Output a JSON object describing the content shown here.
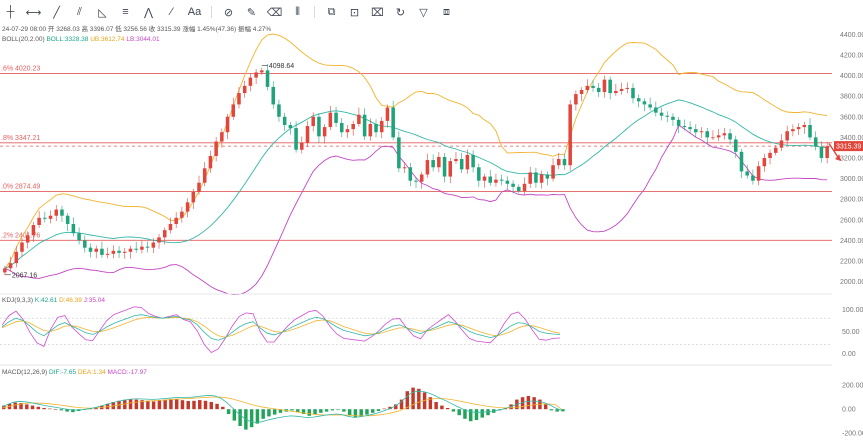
{
  "toolbar": {
    "tools": [
      {
        "name": "crosshair-icon",
        "glyph": "┼"
      },
      {
        "name": "horizontal-ray-icon",
        "glyph": "⟷"
      },
      {
        "name": "trend-line-icon",
        "glyph": "╱"
      },
      {
        "name": "parallel-channel-icon",
        "glyph": "⫽"
      },
      {
        "name": "triangle-icon",
        "glyph": "◺"
      },
      {
        "name": "fib-lines-icon",
        "glyph": "≡"
      },
      {
        "name": "pattern-icon",
        "glyph": "⋀"
      },
      {
        "name": "brush-icon",
        "glyph": "⁄"
      },
      {
        "name": "text-icon",
        "glyph": "Aa"
      },
      {
        "name": "magnet-icon",
        "glyph": "⊘"
      },
      {
        "name": "pencil-icon",
        "glyph": "✎"
      },
      {
        "name": "eraser-icon",
        "glyph": "⌫"
      },
      {
        "name": "candle-icon",
        "glyph": "⫴"
      },
      {
        "name": "copy-icon",
        "glyph": "⧉"
      },
      {
        "name": "lock-icon",
        "glyph": "⊡"
      },
      {
        "name": "trash-icon",
        "glyph": "⌧"
      },
      {
        "name": "refresh-icon",
        "glyph": "↻"
      },
      {
        "name": "filter-icon",
        "glyph": "▽"
      },
      {
        "name": "layers-icon",
        "glyph": "⧈"
      }
    ]
  },
  "chart_data": {
    "type": "candlestick",
    "ohlc_line": {
      "date": "24-07-29 08:00",
      "open_label": "开",
      "open": "3268.03",
      "high_label": "高",
      "high": "3396.07",
      "low_label": "低",
      "low": "3256.56",
      "close_label": "收",
      "close": "3315.39",
      "change_label": "涨幅",
      "change": "1.45%(47.36)",
      "amp_label": "振幅",
      "amp": "4.27%"
    },
    "boll": {
      "label": "BOLL(20,2.00)",
      "mid": "BOLL:3328.38",
      "up": "UB:3612.74",
      "low": "LB:3044.01"
    },
    "price_axis": {
      "ylim": [
        1900,
        4500
      ],
      "ticks": [
        "4400.00",
        "4200.00",
        "4000.00",
        "3800.00",
        "3600.00",
        "3400.00",
        "3200.00",
        "3000.00",
        "2800.00",
        "2600.00",
        "2400.00",
        "2200.00",
        "2000.00"
      ],
      "tick_values": [
        4400,
        4200,
        4000,
        3800,
        3600,
        3400,
        3200,
        3000,
        2800,
        2600,
        2400,
        2200,
        2000
      ]
    },
    "last_price": {
      "value": 3315.39,
      "label": "3315.39"
    },
    "fib_levels": [
      {
        "label": ".6% 4020.23",
        "value": 4020.23
      },
      {
        "label": ".8% 3347.21",
        "value": 3347.21
      },
      {
        "label": ".0% 2874.49",
        "value": 2874.49
      },
      {
        "label": ".2% 2401.76",
        "value": 2401.76
      }
    ],
    "annotations": [
      {
        "label": "4098.64",
        "value": 4098.64
      },
      {
        "label": "2067.16",
        "value": 2067.16
      }
    ],
    "candles_close": [
      2130,
      2180,
      2290,
      2380,
      2450,
      2550,
      2620,
      2610,
      2640,
      2700,
      2640,
      2560,
      2470,
      2400,
      2330,
      2290,
      2320,
      2260,
      2270,
      2300,
      2280,
      2290,
      2320,
      2310,
      2340,
      2330,
      2380,
      2430,
      2500,
      2560,
      2620,
      2680,
      2770,
      2870,
      2960,
      3100,
      3220,
      3360,
      3450,
      3600,
      3720,
      3830,
      3900,
      3980,
      4030,
      4050,
      3890,
      3720,
      3600,
      3520,
      3490,
      3280,
      3350,
      3510,
      3600,
      3410,
      3500,
      3640,
      3540,
      3450,
      3480,
      3530,
      3620,
      3410,
      3530,
      3450,
      3560,
      3690,
      3400,
      3100,
      3110,
      2980,
      2970,
      3040,
      3180,
      3110,
      3210,
      3020,
      3170,
      3190,
      3090,
      3230,
      3110,
      2980,
      3020,
      2960,
      2990,
      2980,
      2950,
      2920,
      2880,
      2950,
      3060,
      2960,
      3040,
      3000,
      3130,
      3190,
      3130,
      3720,
      3820,
      3860,
      3900,
      3880,
      3840,
      3960,
      3830,
      3850,
      3870,
      3880,
      3780,
      3750,
      3720,
      3690,
      3640,
      3610,
      3600,
      3570,
      3510,
      3500,
      3480,
      3450,
      3460,
      3400,
      3400,
      3420,
      3440,
      3380,
      3260,
      3070,
      3030,
      2980,
      3120,
      3200,
      3250,
      3300,
      3370,
      3460,
      3480,
      3500,
      3520,
      3400,
      3310,
      3200,
      3315
    ],
    "kdj": {
      "label": "KDJ(9,3,3)",
      "k": "K:42.61",
      "d": "D:46.39",
      "j": "J:35.04",
      "ylim": [
        -15,
        110
      ],
      "ticks": [
        "100.00",
        "50.00",
        "0.00"
      ],
      "tick_values": [
        100,
        50,
        0
      ],
      "k_values": [
        60,
        72,
        80,
        75,
        62,
        48,
        40,
        52,
        64,
        70,
        62,
        55,
        47,
        43,
        50,
        60,
        68,
        74,
        80,
        86,
        88,
        85,
        82,
        80,
        82,
        84,
        79,
        76,
        65,
        48,
        34,
        30,
        36,
        48,
        60,
        68,
        72,
        58,
        46,
        42,
        47,
        55,
        63,
        70,
        77,
        82,
        79,
        70,
        60,
        52,
        48,
        44,
        40,
        42,
        47,
        55,
        62,
        65,
        58,
        50,
        45,
        52,
        58,
        65,
        72,
        68,
        60,
        50,
        44,
        40,
        36,
        40,
        52,
        63,
        70,
        68,
        60,
        50,
        46,
        44,
        43
      ],
      "d_values": [
        58,
        65,
        72,
        74,
        69,
        60,
        52,
        50,
        55,
        62,
        63,
        60,
        55,
        50,
        49,
        53,
        58,
        64,
        70,
        76,
        80,
        82,
        81,
        80,
        81,
        82,
        80,
        78,
        72,
        62,
        50,
        40,
        37,
        41,
        48,
        56,
        63,
        62,
        56,
        50,
        48,
        51,
        56,
        62,
        68,
        74,
        76,
        74,
        68,
        61,
        56,
        51,
        46,
        44,
        45,
        49,
        54,
        58,
        58,
        55,
        51,
        51,
        54,
        59,
        64,
        66,
        64,
        58,
        52,
        47,
        42,
        40,
        44,
        50,
        58,
        63,
        63,
        59,
        54,
        49,
        46
      ],
      "j_values": [
        64,
        86,
        96,
        78,
        48,
        24,
        16,
        56,
        82,
        86,
        60,
        45,
        31,
        29,
        52,
        74,
        88,
        94,
        100,
        106,
        104,
        91,
        84,
        80,
        84,
        88,
        77,
        72,
        51,
        20,
        2,
        10,
        34,
        62,
        84,
        92,
        90,
        50,
        26,
        26,
        45,
        63,
        77,
        86,
        95,
        98,
        85,
        62,
        44,
        34,
        32,
        30,
        28,
        38,
        51,
        67,
        78,
        79,
        58,
        40,
        33,
        54,
        66,
        77,
        88,
        72,
        52,
        34,
        28,
        26,
        24,
        40,
        68,
        89,
        94,
        78,
        54,
        32,
        30,
        34,
        35
      ]
    },
    "macd": {
      "label": "MACD(12,26,9)",
      "dif": "DIF:-7.65",
      "dea": "DEA:1.34",
      "macd": "MACD:-17.97",
      "ylim": [
        -240,
        260
      ],
      "ticks": [
        "200.00",
        "0.00",
        "-200.00"
      ],
      "tick_values": [
        200,
        0,
        -200
      ],
      "hist": [
        30,
        45,
        55,
        52,
        40,
        30,
        20,
        10,
        5,
        0,
        -10,
        -20,
        -25,
        -15,
        -5,
        5,
        15,
        30,
        45,
        60,
        70,
        78,
        82,
        80,
        75,
        70,
        65,
        72,
        80,
        85,
        82,
        75,
        68,
        70,
        76,
        70,
        60,
        45,
        20,
        -40,
        -95,
        -140,
        -170,
        -150,
        -120,
        -80,
        -60,
        -45,
        -30,
        -20,
        -10,
        -25,
        -40,
        -55,
        -45,
        -30,
        -20,
        -10,
        -5,
        -20,
        -50,
        -70,
        -60,
        -45,
        -30,
        -15,
        5,
        20,
        40,
        80,
        150,
        180,
        170,
        140,
        100,
        60,
        30,
        10,
        -20,
        -50,
        -80,
        -100,
        -90,
        -70,
        -50,
        -30,
        -10,
        10,
        40,
        80,
        100,
        110,
        100,
        80,
        40,
        -10,
        -20,
        -18
      ],
      "dif_values": [
        20,
        40,
        58,
        66,
        62,
        55,
        45,
        35,
        26,
        18,
        10,
        2,
        -6,
        -8,
        -4,
        3,
        12,
        24,
        38,
        52,
        64,
        74,
        82,
        86,
        86,
        84,
        82,
        84,
        88,
        92,
        96,
        98,
        98,
        100,
        106,
        112,
        116,
        110,
        90,
        55,
        10,
        -35,
        -75,
        -100,
        -110,
        -105,
        -92,
        -80,
        -70,
        -62,
        -56,
        -58,
        -64,
        -70,
        -66,
        -58,
        -50,
        -44,
        -40,
        -46,
        -58,
        -68,
        -64,
        -56,
        -46,
        -34,
        -18,
        0,
        22,
        52,
        95,
        135,
        150,
        148,
        135,
        115,
        92,
        70,
        46,
        22,
        0,
        -18,
        -26,
        -26,
        -22,
        -16,
        -8,
        2,
        16,
        36,
        52,
        64,
        68,
        66,
        56,
        36,
        10,
        -8
      ],
      "dea_values": [
        10,
        20,
        32,
        42,
        48,
        52,
        52,
        50,
        46,
        41,
        35,
        28,
        21,
        15,
        11,
        9,
        10,
        13,
        18,
        25,
        33,
        41,
        50,
        57,
        63,
        67,
        70,
        73,
        76,
        79,
        83,
        86,
        89,
        91,
        94,
        97,
        100,
        102,
        100,
        95,
        85,
        72,
        58,
        43,
        30,
        20,
        12,
        5,
        -2,
        -9,
        -15,
        -22,
        -29,
        -36,
        -42,
        -46,
        -48,
        -48,
        -48,
        -48,
        -50,
        -53,
        -55,
        -56,
        -54,
        -50,
        -44,
        -36,
        -26,
        -12,
        8,
        31,
        53,
        70,
        82,
        88,
        89,
        86,
        80,
        72,
        62,
        52,
        42,
        34,
        26,
        19,
        14,
        11,
        12,
        15,
        21,
        28,
        35,
        41,
        44,
        43,
        38,
        1
      ]
    }
  }
}
